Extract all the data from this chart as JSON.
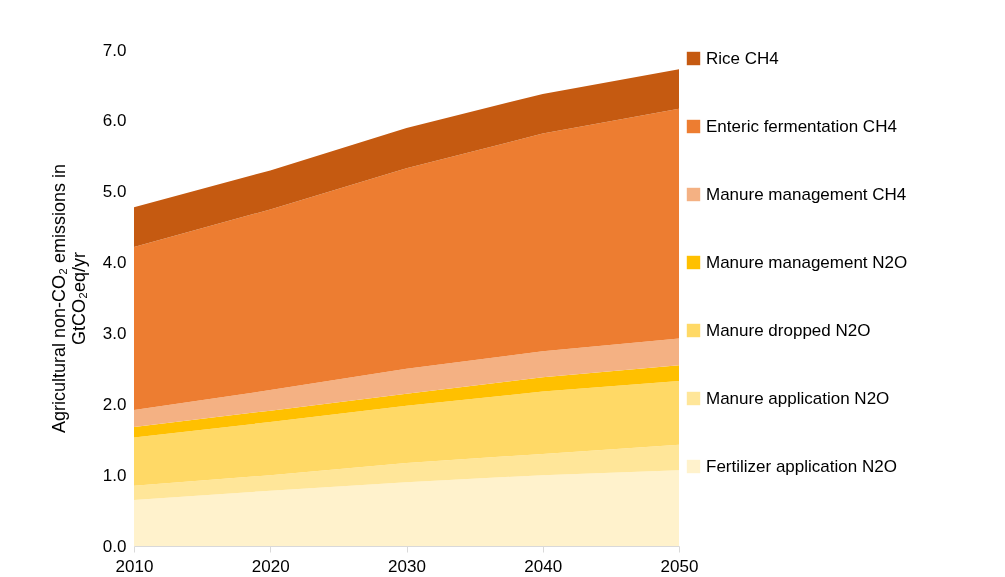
{
  "chart_data": {
    "type": "area",
    "stacked": true,
    "ylabel": "Agricultural non-CO₂ emissions in GtCO₂eq/yr",
    "x": [
      2010,
      2020,
      2030,
      2040,
      2050
    ],
    "xlim": [
      2010,
      2050
    ],
    "xticks": [
      2010,
      2020,
      2030,
      2040,
      2050
    ],
    "ylim": [
      0,
      7
    ],
    "yticks": [
      {
        "value": 0,
        "label": "0.0"
      },
      {
        "value": 1,
        "label": "1.0"
      },
      {
        "value": 2,
        "label": "2.0"
      },
      {
        "value": 3,
        "label": "3.0"
      },
      {
        "value": 4,
        "label": "4.0"
      },
      {
        "value": 5,
        "label": "5.0"
      },
      {
        "value": 6,
        "label": "6.0"
      },
      {
        "value": 7,
        "label": "7.0"
      }
    ],
    "grid": false,
    "legend": "right",
    "series": [
      {
        "name": "Fertilizer application N2O",
        "color": "#fff2cc",
        "values": [
          0.65,
          0.78,
          0.9,
          1.0,
          1.07
        ]
      },
      {
        "name": "Manure application N2O",
        "color": "#ffe699",
        "values": [
          0.2,
          0.22,
          0.27,
          0.3,
          0.36
        ]
      },
      {
        "name": "Manure dropped N2O",
        "color": "#ffd966",
        "values": [
          0.68,
          0.75,
          0.81,
          0.88,
          0.9
        ]
      },
      {
        "name": "Manure management N2O",
        "color": "#ffc000",
        "values": [
          0.15,
          0.16,
          0.17,
          0.2,
          0.22
        ]
      },
      {
        "name": "Manure management CH4",
        "color": "#f4b183",
        "values": [
          0.24,
          0.29,
          0.35,
          0.37,
          0.38
        ]
      },
      {
        "name": "Enteric fermentation CH4",
        "color": "#ed7d31",
        "values": [
          2.3,
          2.55,
          2.83,
          3.07,
          3.24
        ]
      },
      {
        "name": "Rice CH4",
        "color": "#c55a11",
        "values": [
          0.56,
          0.55,
          0.57,
          0.56,
          0.56
        ]
      }
    ]
  }
}
